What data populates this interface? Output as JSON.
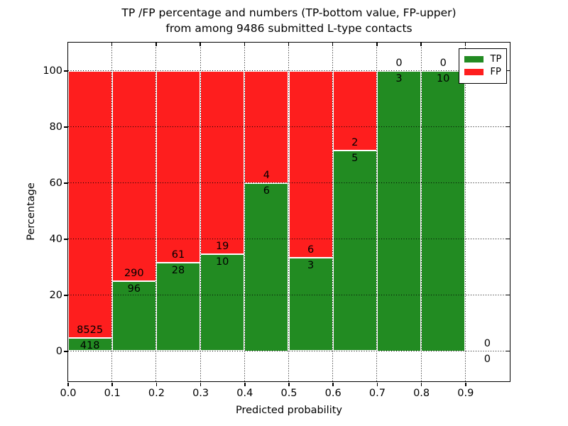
{
  "figure": {
    "title_line1": "TP /FP percentage and numbers (TP-bottom value, FP-upper)",
    "title_line2": "from among 9486 submitted L-type contacts"
  },
  "chart_data": {
    "type": "bar",
    "subtype": "stacked-percentage",
    "title": "TP /FP percentage and numbers (TP-bottom value, FP-upper)\nfrom among 9486 submitted L-type contacts",
    "xlabel": "Predicted probability",
    "ylabel": "Percentage",
    "xlim": [
      0.0,
      1.0
    ],
    "ylim": [
      -11,
      110
    ],
    "x_ticks": [
      "0.0",
      "0.1",
      "0.2",
      "0.3",
      "0.4",
      "0.5",
      "0.6",
      "0.7",
      "0.8",
      "0.9"
    ],
    "y_ticks": [
      0,
      20,
      40,
      60,
      80,
      100
    ],
    "grid": "dotted",
    "legend_position": "upper right",
    "total_submitted": 9486,
    "series": [
      {
        "name": "TP",
        "color": "#228b22"
      },
      {
        "name": "FP",
        "color": "#fe1e1e"
      }
    ],
    "bins": [
      {
        "range": [
          0.0,
          0.1
        ],
        "tp": 418,
        "fp": 8525
      },
      {
        "range": [
          0.1,
          0.2
        ],
        "tp": 96,
        "fp": 290
      },
      {
        "range": [
          0.2,
          0.3
        ],
        "tp": 28,
        "fp": 61
      },
      {
        "range": [
          0.3,
          0.4
        ],
        "tp": 10,
        "fp": 19
      },
      {
        "range": [
          0.4,
          0.5
        ],
        "tp": 6,
        "fp": 4
      },
      {
        "range": [
          0.5,
          0.6
        ],
        "tp": 3,
        "fp": 6
      },
      {
        "range": [
          0.6,
          0.7
        ],
        "tp": 5,
        "fp": 2
      },
      {
        "range": [
          0.7,
          0.8
        ],
        "tp": 3,
        "fp": 0
      },
      {
        "range": [
          0.8,
          0.9
        ],
        "tp": 10,
        "fp": 0
      },
      {
        "range": [
          0.9,
          1.0
        ],
        "tp": 0,
        "fp": 0
      }
    ]
  }
}
